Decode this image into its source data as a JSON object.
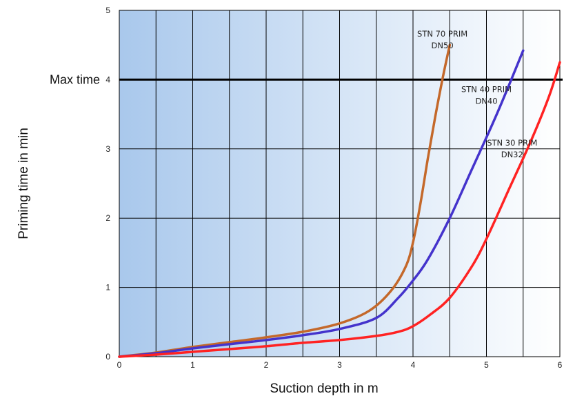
{
  "chart_data": {
    "type": "line",
    "title": "",
    "xlabel": "Suction depth in m",
    "ylabel": "Priming time in min",
    "xlim": [
      0,
      6
    ],
    "ylim": [
      0,
      5
    ],
    "x_ticks": [
      "0",
      "1",
      "2",
      "3",
      "4",
      "5",
      "6"
    ],
    "y_ticks": [
      "0",
      "1",
      "2",
      "3",
      "4",
      "5"
    ],
    "grid": true,
    "background": "blue-to-white horizontal gradient",
    "reference_line": {
      "y": 4,
      "label": "Max time",
      "color": "#000000"
    },
    "series": [
      {
        "label_lines": [
          "STN 70 PRIM",
          "DN50"
        ],
        "color": "#c4682a",
        "label_at": [
          4.4,
          4.62
        ],
        "points": [
          [
            0,
            0
          ],
          [
            0.5,
            0.06
          ],
          [
            1,
            0.14
          ],
          [
            1.5,
            0.21
          ],
          [
            2,
            0.28
          ],
          [
            2.5,
            0.36
          ],
          [
            3,
            0.48
          ],
          [
            3.4,
            0.66
          ],
          [
            3.7,
            0.95
          ],
          [
            3.9,
            1.3
          ],
          [
            4.0,
            1.65
          ],
          [
            4.1,
            2.2
          ],
          [
            4.2,
            2.85
          ],
          [
            4.3,
            3.45
          ],
          [
            4.4,
            4.0
          ],
          [
            4.5,
            4.5
          ]
        ]
      },
      {
        "label_lines": [
          "STN 40 PRIM",
          "DN40"
        ],
        "color": "#4433cc",
        "label_at": [
          5.0,
          3.82
        ],
        "points": [
          [
            0,
            0
          ],
          [
            0.5,
            0.05
          ],
          [
            1,
            0.12
          ],
          [
            1.5,
            0.18
          ],
          [
            2,
            0.24
          ],
          [
            2.5,
            0.31
          ],
          [
            3,
            0.4
          ],
          [
            3.5,
            0.56
          ],
          [
            3.8,
            0.85
          ],
          [
            4.0,
            1.1
          ],
          [
            4.2,
            1.4
          ],
          [
            4.5,
            2.0
          ],
          [
            4.8,
            2.7
          ],
          [
            5.1,
            3.4
          ],
          [
            5.3,
            3.9
          ],
          [
            5.5,
            4.42
          ]
        ]
      },
      {
        "label_lines": [
          "STN 30 PRIM",
          "DN32"
        ],
        "color": "#ff2222",
        "label_at": [
          5.35,
          3.05
        ],
        "points": [
          [
            0,
            0
          ],
          [
            0.5,
            0.03
          ],
          [
            1,
            0.07
          ],
          [
            1.5,
            0.11
          ],
          [
            2,
            0.15
          ],
          [
            2.5,
            0.2
          ],
          [
            3,
            0.24
          ],
          [
            3.5,
            0.3
          ],
          [
            3.8,
            0.36
          ],
          [
            4.0,
            0.44
          ],
          [
            4.25,
            0.62
          ],
          [
            4.5,
            0.85
          ],
          [
            4.8,
            1.3
          ],
          [
            5.0,
            1.7
          ],
          [
            5.3,
            2.4
          ],
          [
            5.6,
            3.1
          ],
          [
            5.85,
            3.75
          ],
          [
            6.0,
            4.25
          ]
        ]
      }
    ]
  }
}
